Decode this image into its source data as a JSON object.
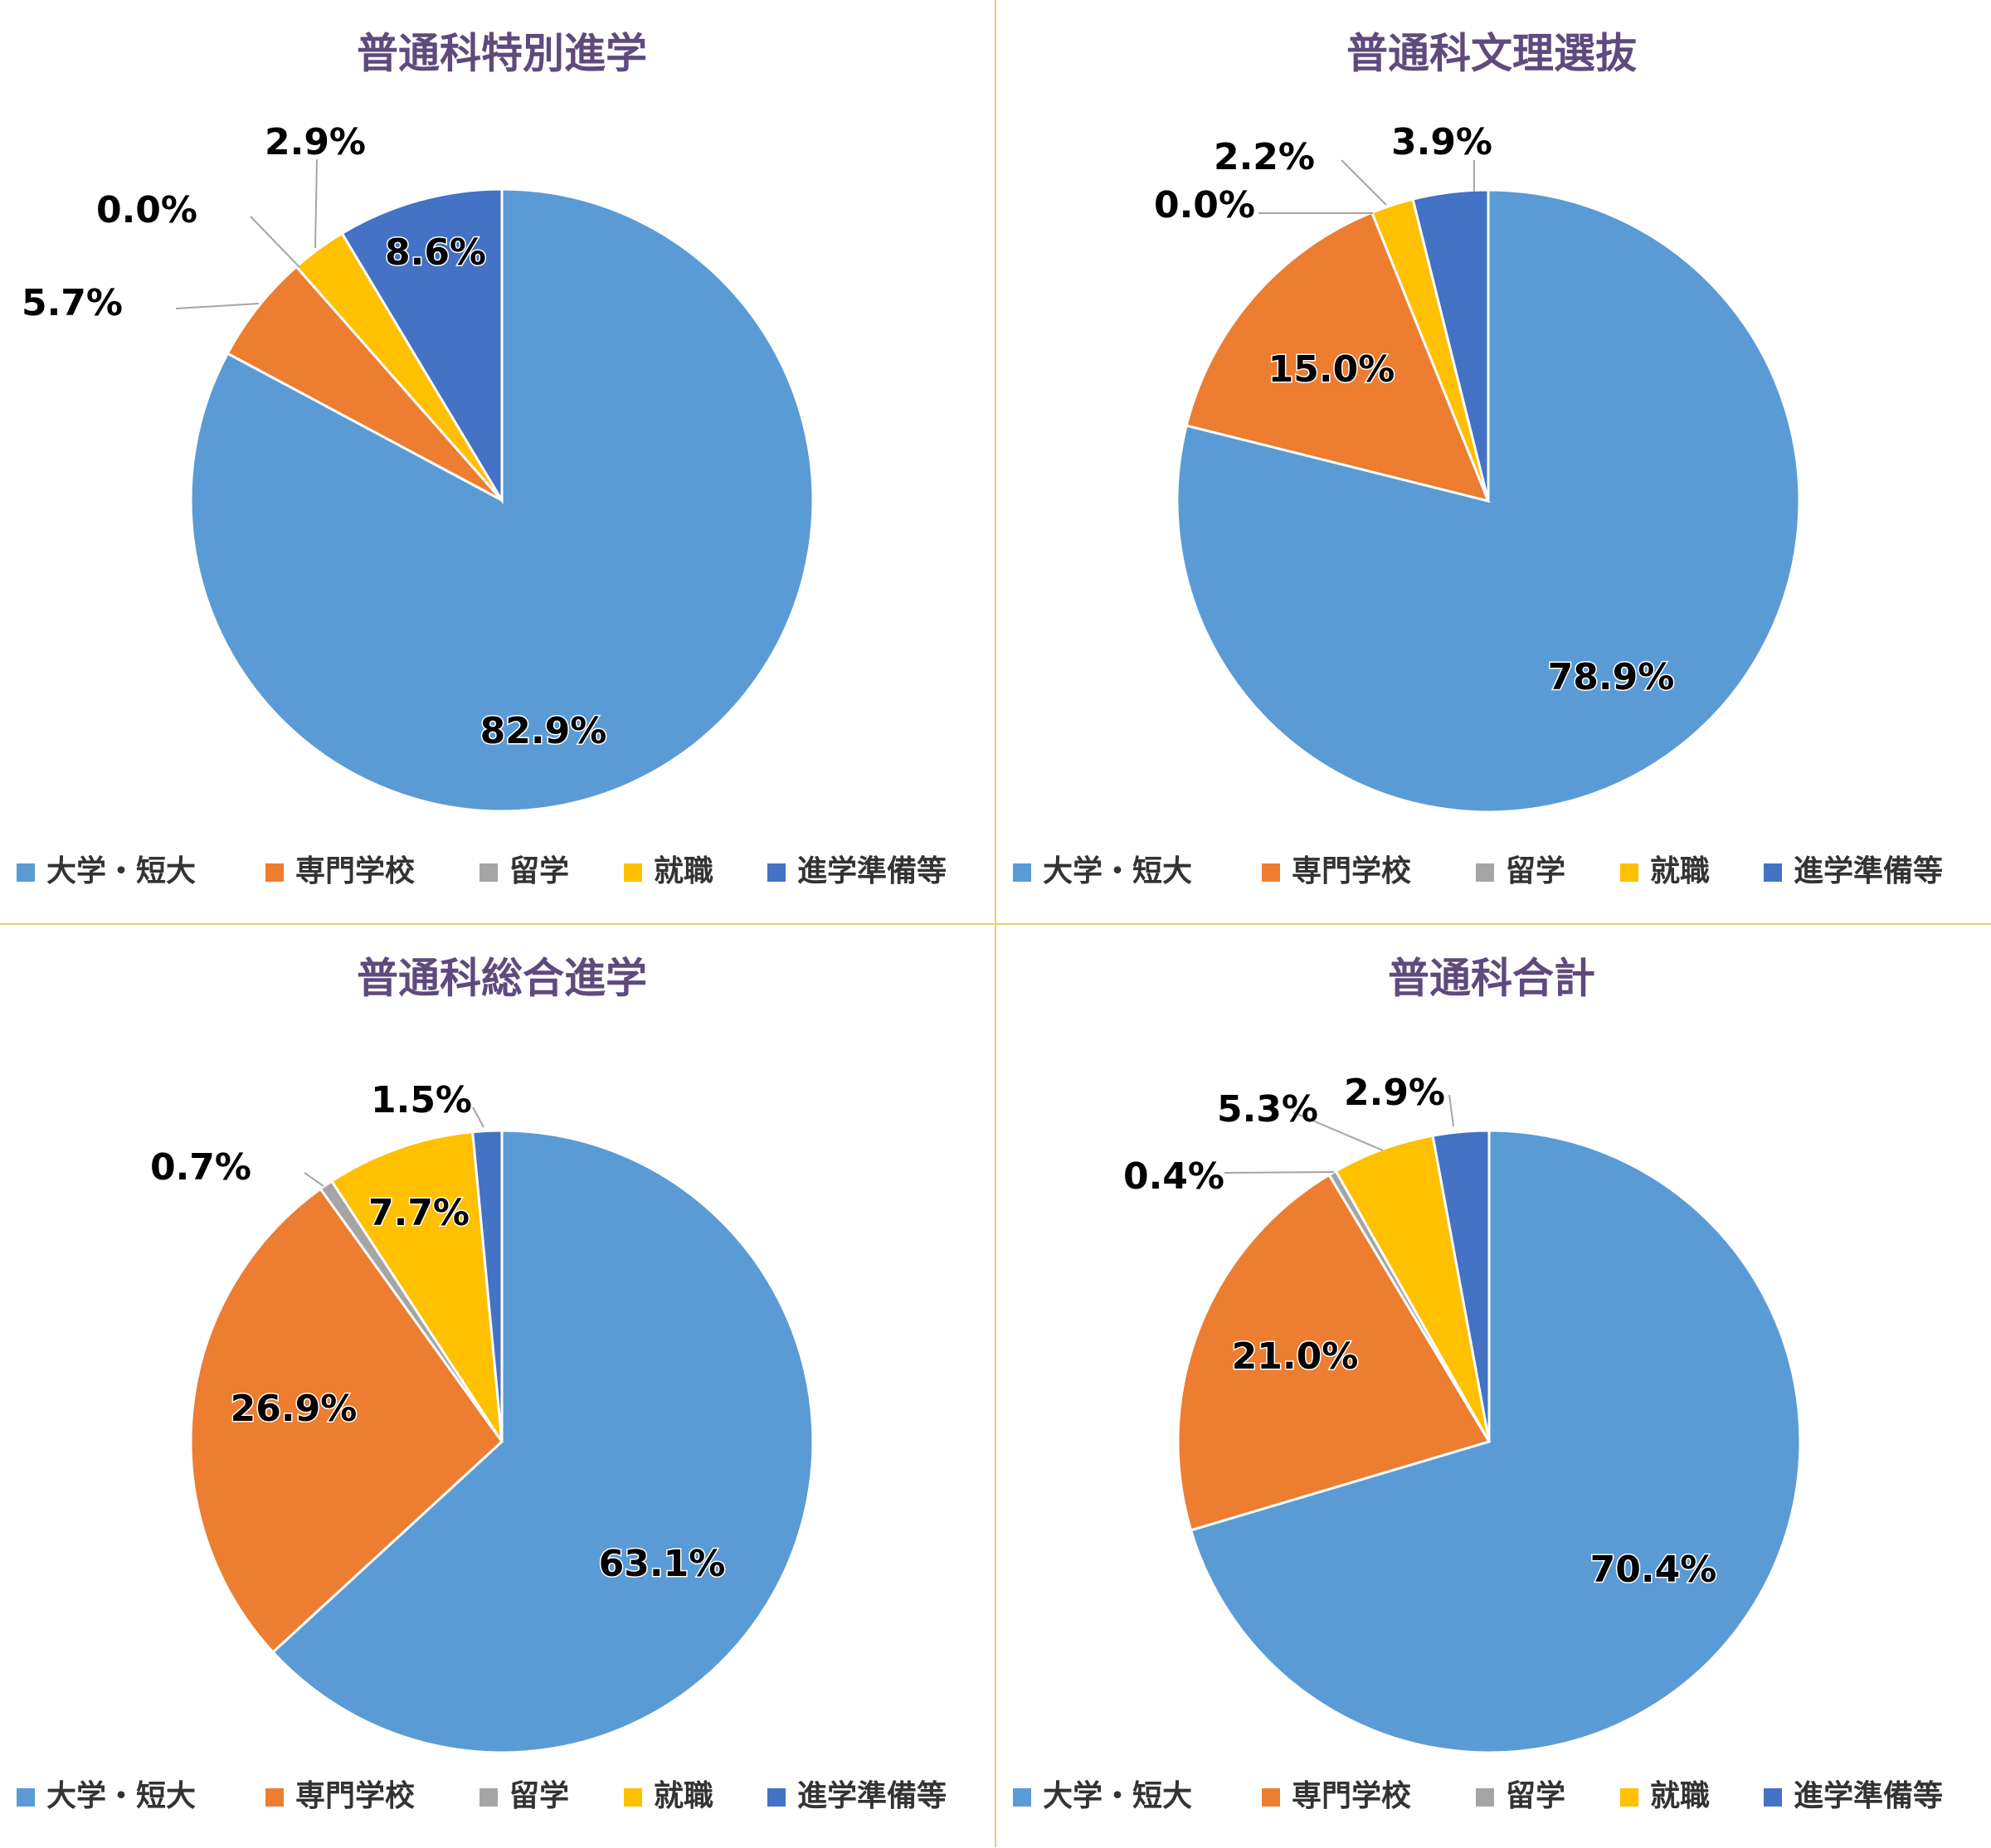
{
  "chart_data": [
    {
      "type": "pie",
      "title": "普通科特別進学",
      "categories": [
        "大学・短大",
        "専門学校",
        "留学",
        "就職",
        "進学準備等"
      ],
      "values": [
        82.9,
        5.7,
        0.0,
        2.9,
        8.6
      ],
      "labels": [
        "82.9%",
        "5.7%",
        "0.0%",
        "2.9%",
        "8.6%"
      ],
      "legend": "bottom"
    },
    {
      "type": "pie",
      "title": "普通科文理選抜",
      "categories": [
        "大学・短大",
        "専門学校",
        "留学",
        "就職",
        "進学準備等"
      ],
      "values": [
        78.9,
        15.0,
        0.0,
        2.2,
        3.9
      ],
      "labels": [
        "78.9%",
        "15.0%",
        "0.0%",
        "2.2%",
        "3.9%"
      ],
      "legend": "bottom"
    },
    {
      "type": "pie",
      "title": "普通科総合進学",
      "categories": [
        "大学・短大",
        "専門学校",
        "留学",
        "就職",
        "進学準備等"
      ],
      "values": [
        63.1,
        26.9,
        0.7,
        7.7,
        1.5
      ],
      "labels": [
        "63.1%",
        "26.9%",
        "0.7%",
        "7.7%",
        "1.5%"
      ],
      "legend": "bottom"
    },
    {
      "type": "pie",
      "title": "普通科合計",
      "categories": [
        "大学・短大",
        "専門学校",
        "留学",
        "就職",
        "進学準備等"
      ],
      "values": [
        70.4,
        21.0,
        0.4,
        5.3,
        2.9
      ],
      "labels": [
        "70.4%",
        "21.0%",
        "0.4%",
        "5.3%",
        "2.9%"
      ],
      "legend": "bottom"
    }
  ],
  "colors": [
    "#5b9bd5",
    "#ed7d31",
    "#a5a5a5",
    "#ffc000",
    "#4472c4"
  ],
  "legend_labels": [
    "大学・短大",
    "専門学校",
    "留学",
    "就職",
    "進学準備等"
  ]
}
